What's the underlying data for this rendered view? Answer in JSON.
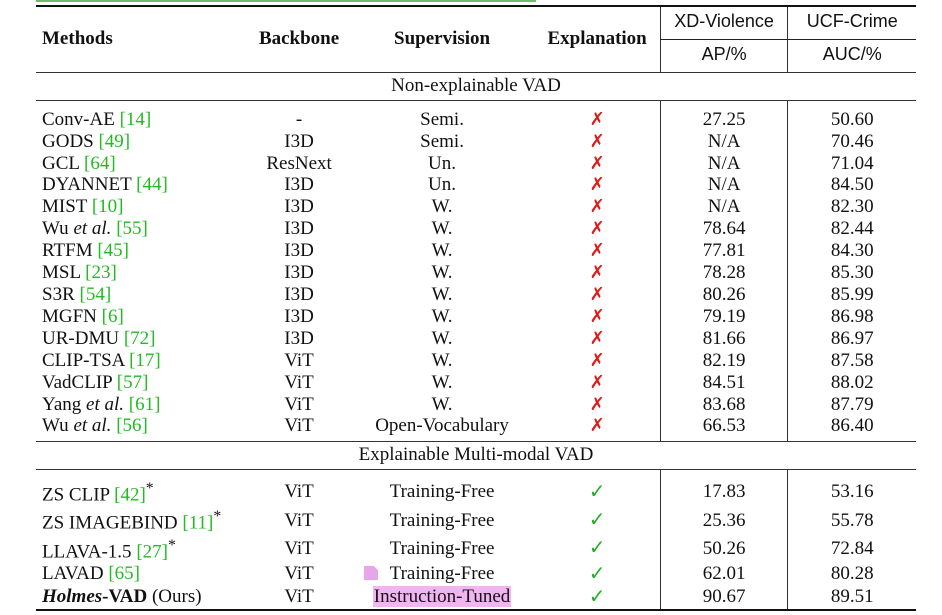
{
  "table": {
    "header": {
      "methods": "Methods",
      "backbone": "Backbone",
      "supervision": "Supervision",
      "explanation": "Explanation",
      "xd_group": "XD-Violence",
      "ucf_group": "UCF-Crime",
      "xd_metric": "AP/%",
      "ucf_metric": "AUC/%"
    },
    "section1_title": "Non-explainable VAD",
    "section2_title": "Explainable Multi-modal VAD",
    "rows1": [
      {
        "name": "Conv-AE ",
        "cite": "[14]",
        "backbone": "-",
        "supervision": "Semi.",
        "xd": "27.25",
        "ucf": "50.60"
      },
      {
        "name": "GODS ",
        "cite": "[49]",
        "backbone": "I3D",
        "supervision": "Semi.",
        "xd": "N/A",
        "ucf": "70.46"
      },
      {
        "name": "GCL ",
        "cite": "[64]",
        "backbone": "ResNext",
        "supervision": "Un.",
        "xd": "N/A",
        "ucf": "71.04"
      },
      {
        "name": "DYANNET ",
        "cite": "[44]",
        "backbone": "I3D",
        "supervision": "Un.",
        "xd": "N/A",
        "ucf": "84.50"
      },
      {
        "name": "MIST ",
        "cite": "[10]",
        "backbone": "I3D",
        "supervision": "W.",
        "xd": "N/A",
        "ucf": "82.30"
      },
      {
        "name_pre": "Wu ",
        "name_it": "et al.",
        "cite": "[55]",
        "backbone": "I3D",
        "supervision": "W.",
        "xd": "78.64",
        "ucf": "82.44"
      },
      {
        "name": "RTFM ",
        "cite": "[45]",
        "backbone": "I3D",
        "supervision": "W.",
        "xd": "77.81",
        "ucf": "84.30"
      },
      {
        "name": "MSL ",
        "cite": "[23]",
        "backbone": "I3D",
        "supervision": "W.",
        "xd": "78.28",
        "ucf": "85.30"
      },
      {
        "name": "S3R ",
        "cite": "[54]",
        "backbone": "I3D",
        "supervision": "W.",
        "xd": "80.26",
        "ucf": "85.99"
      },
      {
        "name": "MGFN ",
        "cite": "[6]",
        "backbone": "I3D",
        "supervision": "W.",
        "xd": "79.19",
        "ucf": "86.98"
      },
      {
        "name": "UR-DMU ",
        "cite": "[72]",
        "backbone": "I3D",
        "supervision": "W.",
        "xd": "81.66",
        "ucf": "86.97"
      },
      {
        "name": "CLIP-TSA ",
        "cite": "[17]",
        "backbone": "ViT",
        "supervision": "W.",
        "xd": "82.19",
        "ucf": "87.58"
      },
      {
        "name": "VadCLIP ",
        "cite": "[57]",
        "backbone": "ViT",
        "supervision": "W.",
        "xd": "84.51",
        "ucf": "88.02"
      },
      {
        "name_pre": "Yang ",
        "name_it": "et al.",
        "cite": "[61]",
        "backbone": "ViT",
        "supervision": "W.",
        "xd": "83.68",
        "ucf": "87.79"
      },
      {
        "name_pre": "Wu ",
        "name_it": "et al.",
        "cite": "[56]",
        "backbone": "ViT",
        "supervision": "Open-Vocabulary",
        "xd": "66.53",
        "ucf": "86.40"
      }
    ],
    "rows2": [
      {
        "name": "ZS CLIP ",
        "cite": "[42]",
        "star": "*",
        "backbone": "ViT",
        "supervision": "Training-Free",
        "xd": "17.83",
        "ucf": "53.16"
      },
      {
        "name": "ZS IMAGEBIND ",
        "cite": "[11]",
        "star": "*",
        "backbone": "ViT",
        "supervision": "Training-Free",
        "xd": "25.36",
        "ucf": "55.78"
      },
      {
        "name": "LLAVA-1.5 ",
        "cite": "[27]",
        "star": "*",
        "backbone": "ViT",
        "supervision": "Training-Free",
        "xd": "50.26",
        "ucf": "72.84"
      },
      {
        "name": "LAVAD ",
        "cite": "[65]",
        "backbone": "ViT",
        "supervision": "Training-Free",
        "xd": "62.01",
        "ucf": "80.28"
      }
    ],
    "ours": {
      "name_it": "Holmes",
      "name_rest": "-VAD",
      "suffix": " (Ours)",
      "backbone": "ViT",
      "supervision": "Instruction-Tuned",
      "xd": "90.67",
      "ucf": "89.51"
    },
    "marks": {
      "cross": "✗",
      "check": "✓"
    },
    "colors": {
      "citation": "#22bb22",
      "cross": "#e01818",
      "check": "#22b022",
      "highlight": "#f3b4f2"
    }
  }
}
